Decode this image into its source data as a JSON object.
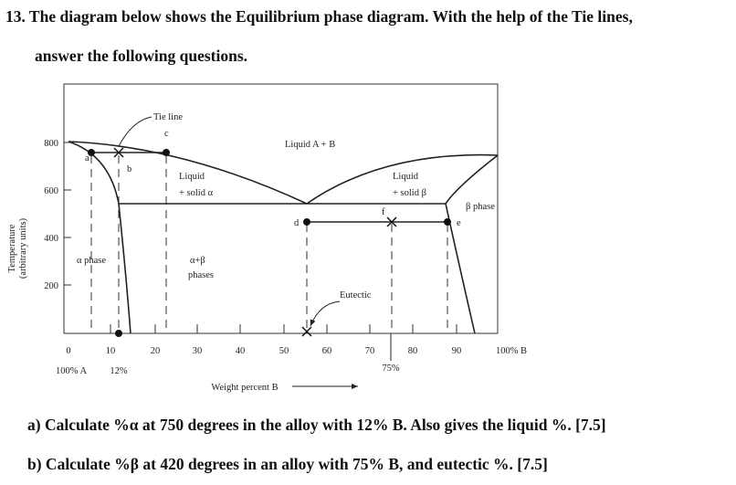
{
  "question": {
    "lines": [
      "13. The diagram below shows the Equilibrium phase diagram. With the help of the Tie lines,",
      "answer the following questions."
    ],
    "parts": [
      "a) Calculate %α at 750 degrees in the alloy with 12% B. Also gives the liquid %. [7.5]",
      "b) Calculate %β at 420 degrees in an alloy with 75% B, and eutectic %. [7.5]"
    ]
  },
  "diagram": {
    "y_axis_title": [
      "Temperature",
      "(arbitrary units)"
    ],
    "y_ticks": [
      "800",
      "600",
      "400",
      "200"
    ],
    "x_ticks": [
      "0",
      "10",
      "20",
      "30",
      "40",
      "50",
      "60",
      "70",
      "80",
      "90",
      "100% B"
    ],
    "x_sub_labels": [
      "100% A",
      "12%",
      "75%"
    ],
    "x_axis_title": "Weight percent B",
    "regions": {
      "liquid": "Liquid A + B",
      "liquid_alpha": [
        "Liquid",
        "+ solid α"
      ],
      "liquid_beta": [
        "Liquid",
        "+ solid β"
      ],
      "alpha": "α phase",
      "beta": "β phase",
      "alpha_beta": [
        "α+β",
        "phases"
      ]
    },
    "annotations": {
      "tie_line": "Tie line",
      "eutectic": "Eutectic"
    },
    "points": [
      "a",
      "b",
      "c",
      "d",
      "e",
      "f"
    ]
  }
}
